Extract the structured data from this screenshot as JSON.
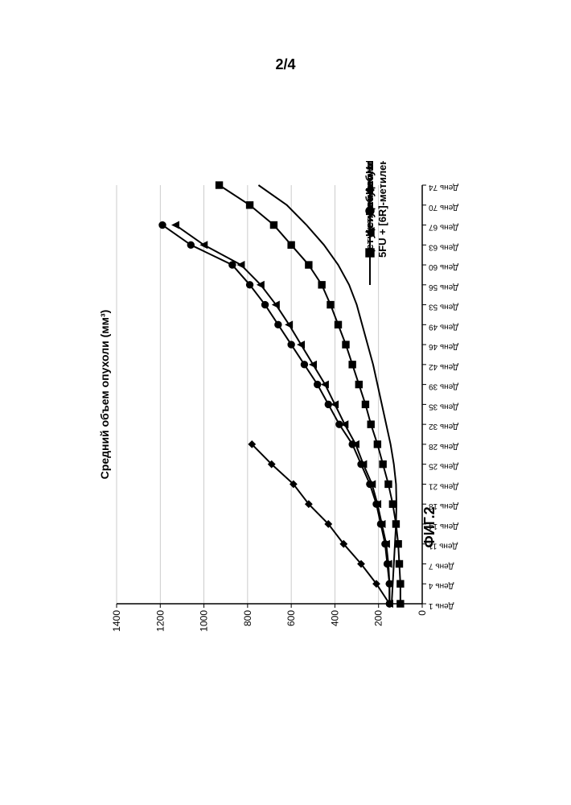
{
  "page_number": "2/4",
  "figure_label": "ФИГ.2",
  "chart": {
    "type": "line",
    "title": "Средний объем опухоли (мм³)",
    "title_fontsize": 14,
    "x_categories": [
      "День 1",
      "День 4",
      "День 7",
      "День 11",
      "День 14",
      "День 18",
      "День 21",
      "День 25",
      "День 28",
      "День 32",
      "День 35",
      "День 39",
      "День 42",
      "День 46",
      "День 49",
      "День 53",
      "День 56",
      "День 60",
      "День 63",
      "День 67",
      "День 70",
      "День 74"
    ],
    "x_tick_fontsize": 10,
    "ylim": [
      0,
      1400
    ],
    "ytick_step": 200,
    "y_tick_fontsize": 12,
    "background_color": "#ffffff",
    "axis_color": "#000000",
    "grid_color": "#bfbfbf",
    "grid_width": 0.8,
    "line_width": 2,
    "marker_size": 4.2,
    "series": [
      {
        "name": "Носитель",
        "marker": "diamond",
        "color": "#000000",
        "data": [
          150,
          210,
          280,
          360,
          430,
          520,
          590,
          690,
          780,
          null,
          null,
          null,
          null,
          null,
          null,
          null,
          null,
          null,
          null,
          null,
          null,
          null
        ]
      },
      {
        "name": "Цетуксимаб",
        "marker": "circle",
        "color": "#000000",
        "data": [
          150,
          150,
          160,
          170,
          190,
          210,
          240,
          280,
          320,
          380,
          430,
          480,
          540,
          600,
          660,
          720,
          790,
          870,
          1060,
          1190,
          null,
          null
        ]
      },
      {
        "name": "Цетуксимаб + [6R]-метилен-THF",
        "marker": "triangle",
        "color": "#000000",
        "data": [
          150,
          150,
          155,
          165,
          185,
          205,
          230,
          270,
          305,
          355,
          400,
          445,
          500,
          555,
          610,
          670,
          740,
          830,
          1000,
          1130,
          null,
          null
        ]
      },
      {
        "name": "Цетуксимаб + 5FU",
        "marker": "square",
        "color": "#000000",
        "data": [
          100,
          100,
          105,
          110,
          120,
          135,
          155,
          180,
          205,
          235,
          260,
          290,
          320,
          350,
          385,
          420,
          460,
          520,
          600,
          680,
          790,
          930
        ]
      },
      {
        "name": "Цетуксимаб + 5FU + [6R]-метилен-THF",
        "marker": "none",
        "color": "#000000",
        "data": [
          140,
          135,
          130,
          125,
          120,
          118,
          120,
          130,
          145,
          165,
          185,
          205,
          225,
          250,
          275,
          300,
          335,
          385,
          450,
          530,
          620,
          750
        ]
      }
    ],
    "legend_fontsize": 13
  }
}
